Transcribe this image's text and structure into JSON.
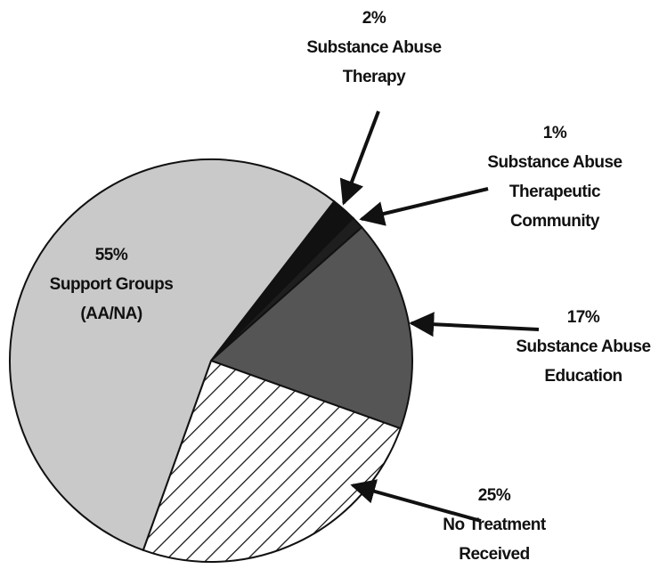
{
  "chart_data": {
    "type": "pie",
    "categories": [
      "Substance Abuse Therapy",
      "Substance Abuse Therapeutic Community",
      "Substance Abuse Education",
      "No Treatment Received",
      "Support Groups (AA/NA)"
    ],
    "values": [
      2,
      1,
      17,
      25,
      55
    ],
    "value_labels": [
      "2%",
      "1%",
      "17%",
      "25%",
      "55%"
    ],
    "colors": [
      "#111111",
      "#1e1e1e",
      "#555555",
      "#ffffff",
      "#c9c9c9"
    ],
    "hatched": [
      false,
      false,
      false,
      true,
      false
    ]
  }
}
